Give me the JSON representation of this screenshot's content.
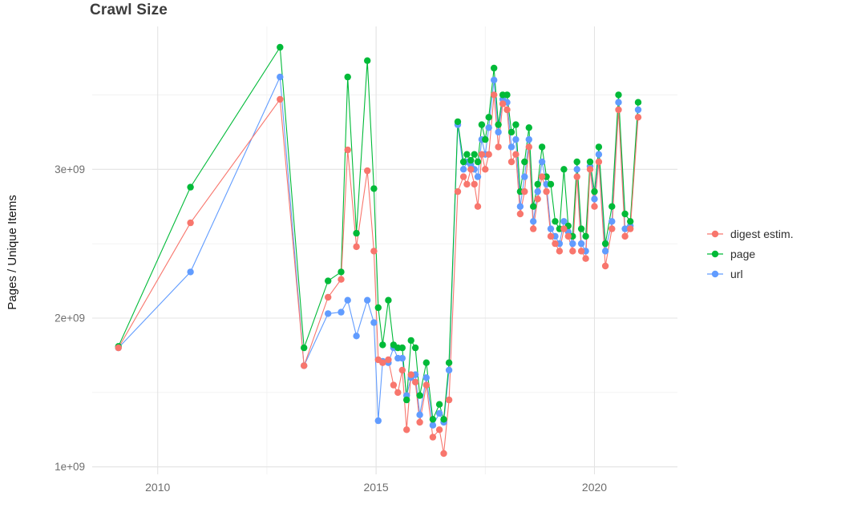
{
  "chart_data": {
    "type": "line",
    "title": "Crawl Size",
    "ylabel": "Pages / Unique Items",
    "xlabel": "",
    "values_unit": "1e9",
    "grid": true,
    "legend_position": "right",
    "xlim": [
      2008.5,
      2021.9
    ],
    "ylim": [
      0.95,
      3.96
    ],
    "x_ticks": [
      {
        "value": 2010,
        "label": "2010"
      },
      {
        "value": 2015,
        "label": "2015"
      },
      {
        "value": 2020,
        "label": "2020"
      }
    ],
    "y_ticks": [
      {
        "value": 1,
        "label": "1e+09"
      },
      {
        "value": 2,
        "label": "2e+09"
      },
      {
        "value": 3,
        "label": "3e+09"
      }
    ],
    "x_minor_gridlines": [
      2012.5,
      2017.5
    ],
    "y_minor_gridlines": [
      1.5,
      2.5,
      3.5
    ],
    "x": [
      2009.1,
      2010.75,
      2012.8,
      2013.35,
      2013.9,
      2014.2,
      2014.35,
      2014.55,
      2014.8,
      2014.95,
      2015.05,
      2015.15,
      2015.28,
      2015.4,
      2015.5,
      2015.6,
      2015.7,
      2015.8,
      2015.9,
      2016.0,
      2016.15,
      2016.3,
      2016.45,
      2016.55,
      2016.67,
      2016.87,
      2017.0,
      2017.08,
      2017.17,
      2017.25,
      2017.33,
      2017.42,
      2017.5,
      2017.58,
      2017.7,
      2017.8,
      2017.9,
      2018.0,
      2018.1,
      2018.2,
      2018.3,
      2018.4,
      2018.5,
      2018.6,
      2018.7,
      2018.8,
      2018.9,
      2019.0,
      2019.1,
      2019.2,
      2019.3,
      2019.4,
      2019.5,
      2019.6,
      2019.7,
      2019.8,
      2019.9,
      2020.0,
      2020.1,
      2020.25,
      2020.4,
      2020.55,
      2020.7,
      2020.82,
      2021.0
    ],
    "series": [
      {
        "name": "digest estim.",
        "slug": "digest-estim",
        "color": "#F8766D",
        "values": [
          1.8,
          2.64,
          3.47,
          1.68,
          2.14,
          2.26,
          3.13,
          2.48,
          2.99,
          2.45,
          1.72,
          1.7,
          1.72,
          1.55,
          1.5,
          1.65,
          1.25,
          1.62,
          1.57,
          1.3,
          1.55,
          1.2,
          1.25,
          1.09,
          1.45,
          2.85,
          2.95,
          2.9,
          3.0,
          2.9,
          2.75,
          3.1,
          3.0,
          3.1,
          3.5,
          3.15,
          3.44,
          3.4,
          3.05,
          3.1,
          2.7,
          2.85,
          3.15,
          2.6,
          2.8,
          2.95,
          2.85,
          2.55,
          2.5,
          2.45,
          2.6,
          2.55,
          2.45,
          2.95,
          2.45,
          2.4,
          3.0,
          2.75,
          3.05,
          2.35,
          2.6,
          3.4,
          2.55,
          2.6,
          3.35
        ]
      },
      {
        "name": "page",
        "slug": "page",
        "color": "#00BA38",
        "values": [
          1.81,
          2.88,
          3.82,
          1.8,
          2.25,
          2.31,
          3.62,
          2.57,
          3.73,
          2.87,
          2.07,
          1.82,
          2.12,
          1.82,
          1.8,
          1.8,
          1.45,
          1.85,
          1.8,
          1.48,
          1.7,
          1.32,
          1.42,
          1.32,
          1.7,
          3.32,
          3.05,
          3.1,
          3.06,
          3.1,
          3.05,
          3.3,
          3.2,
          3.35,
          3.68,
          3.3,
          3.5,
          3.5,
          3.25,
          3.3,
          2.85,
          3.05,
          3.28,
          2.75,
          2.9,
          3.15,
          2.95,
          2.9,
          2.65,
          2.6,
          3.0,
          2.62,
          2.55,
          3.05,
          2.6,
          2.55,
          3.05,
          2.85,
          3.15,
          2.5,
          2.75,
          3.5,
          2.7,
          2.65,
          3.45
        ]
      },
      {
        "name": "url",
        "slug": "url",
        "color": "#619CFF",
        "values": [
          1.8,
          2.31,
          3.62,
          1.68,
          2.03,
          2.04,
          2.12,
          1.88,
          2.12,
          1.97,
          1.31,
          1.71,
          1.7,
          1.8,
          1.73,
          1.73,
          1.48,
          1.6,
          1.62,
          1.35,
          1.6,
          1.28,
          1.36,
          1.3,
          1.65,
          3.3,
          3.0,
          3.05,
          3.03,
          3.0,
          2.95,
          3.2,
          3.1,
          3.28,
          3.6,
          3.25,
          3.47,
          3.45,
          3.15,
          3.2,
          2.75,
          2.95,
          3.2,
          2.65,
          2.85,
          3.05,
          2.9,
          2.6,
          2.55,
          2.5,
          2.65,
          2.58,
          2.5,
          3.0,
          2.5,
          2.45,
          3.02,
          2.8,
          3.1,
          2.45,
          2.65,
          3.45,
          2.6,
          2.62,
          3.4
        ]
      }
    ]
  },
  "colors": {
    "background": "#ffffff",
    "grid_major": "#e3e3e3",
    "grid_minor": "#f1f1f1",
    "title": "#3c3c3c",
    "axis_text": "#6e6e6e",
    "axis_title": "#141414",
    "legend_text": "#2e2e2e"
  }
}
